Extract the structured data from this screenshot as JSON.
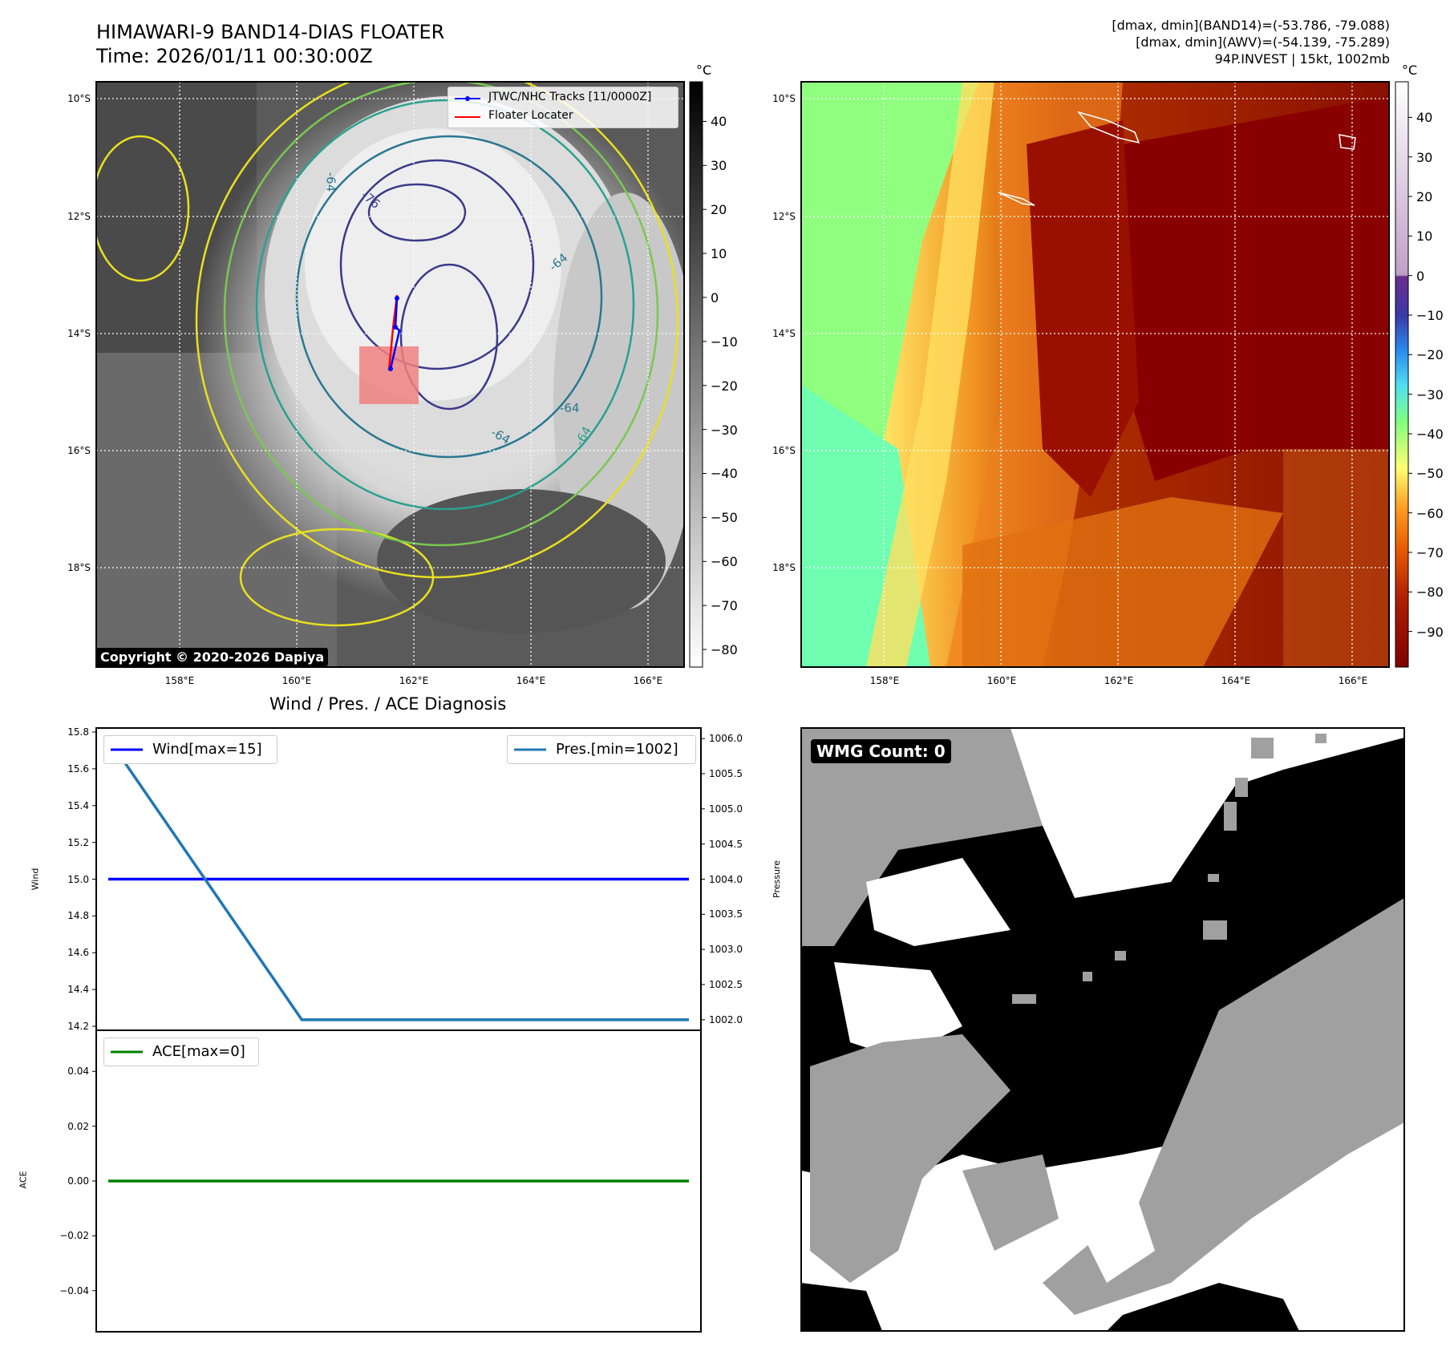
{
  "header": {
    "title_line1": "HIMAWARI-9 BAND14-DIAS FLOATER",
    "title_line2": "Time: 2026/01/11 00:30:00Z",
    "info_line1": "[dmax, dmin](BAND14)=(-53.786, -79.088)",
    "info_line2": "[dmax, dmin](AWV)=(-54.139, -75.289)",
    "info_line3": "94P.INVEST | 15kt, 1002mb"
  },
  "ir_map": {
    "colorbar_unit": "°C",
    "colorbar_ticks": [
      40,
      30,
      20,
      10,
      0,
      -10,
      -20,
      -30,
      -40,
      -50,
      -60,
      -70,
      -80
    ],
    "lat_labels": [
      "10°S",
      "12°S",
      "14°S",
      "16°S",
      "18°S"
    ],
    "lon_labels": [
      "158°E",
      "160°E",
      "162°E",
      "164°E",
      "166°E"
    ],
    "legend": [
      "JTWC/NHC Tracks [11/0000Z]",
      "Floater Locater"
    ],
    "copyright": "Copyright © 2020-2026 Dapiya",
    "contour_labels": [
      "-64",
      "-76",
      "-64",
      "-64",
      "-64",
      "-64"
    ],
    "colors": {
      "track": "#0000ff",
      "locater": "#ff0000",
      "box": "#f08080"
    }
  },
  "awv_map": {
    "colorbar_unit": "°C",
    "colorbar_ticks": [
      40,
      30,
      20,
      10,
      0,
      -10,
      -20,
      -30,
      -40,
      -50,
      -60,
      -70,
      -80,
      -90
    ],
    "lat_labels": [
      "10°S",
      "12°S",
      "14°S",
      "16°S",
      "18°S"
    ],
    "lon_labels": [
      "158°E",
      "160°E",
      "162°E",
      "164°E",
      "166°E"
    ]
  },
  "chart_data": [
    {
      "type": "line",
      "title": "Wind / Pres. / ACE Diagnosis",
      "ylabel": "Wind",
      "ylabel_right": "Pressure",
      "x": [
        0,
        1,
        2,
        3
      ],
      "y_ticks": [
        15.8,
        15.6,
        15.4,
        15.2,
        15.0,
        14.8,
        14.6,
        14.4,
        14.2
      ],
      "y2_ticks": [
        1006.0,
        1005.5,
        1005.0,
        1004.5,
        1004.0,
        1003.5,
        1003.0,
        1002.5,
        1002.0
      ],
      "ylim": [
        14.2,
        15.8
      ],
      "y2lim": [
        1001.85,
        1006.15
      ],
      "series": [
        {
          "name": "Wind[max=15]",
          "axis": "left",
          "color": "#0000ff",
          "values": [
            15,
            15,
            15,
            15
          ]
        },
        {
          "name": "Pres.[min=1002]",
          "axis": "right",
          "color": "#1f77b4",
          "values": [
            1006,
            1002,
            1002,
            1002
          ]
        }
      ],
      "legend": [
        "top-left",
        "top-right"
      ]
    },
    {
      "type": "line",
      "ylabel": "ACE",
      "x": [
        0,
        1,
        2,
        3
      ],
      "y_ticks": [
        "0.04",
        "0.02",
        "0.00",
        "−0.02",
        "−0.04"
      ],
      "ylim": [
        -0.055,
        0.055
      ],
      "series": [
        {
          "name": "ACE[max=0]",
          "color": "#008000",
          "values": [
            0,
            0,
            0,
            0
          ]
        }
      ],
      "legend": "top-left"
    }
  ],
  "wmg_panel": {
    "label": "WMG Count: 0"
  }
}
